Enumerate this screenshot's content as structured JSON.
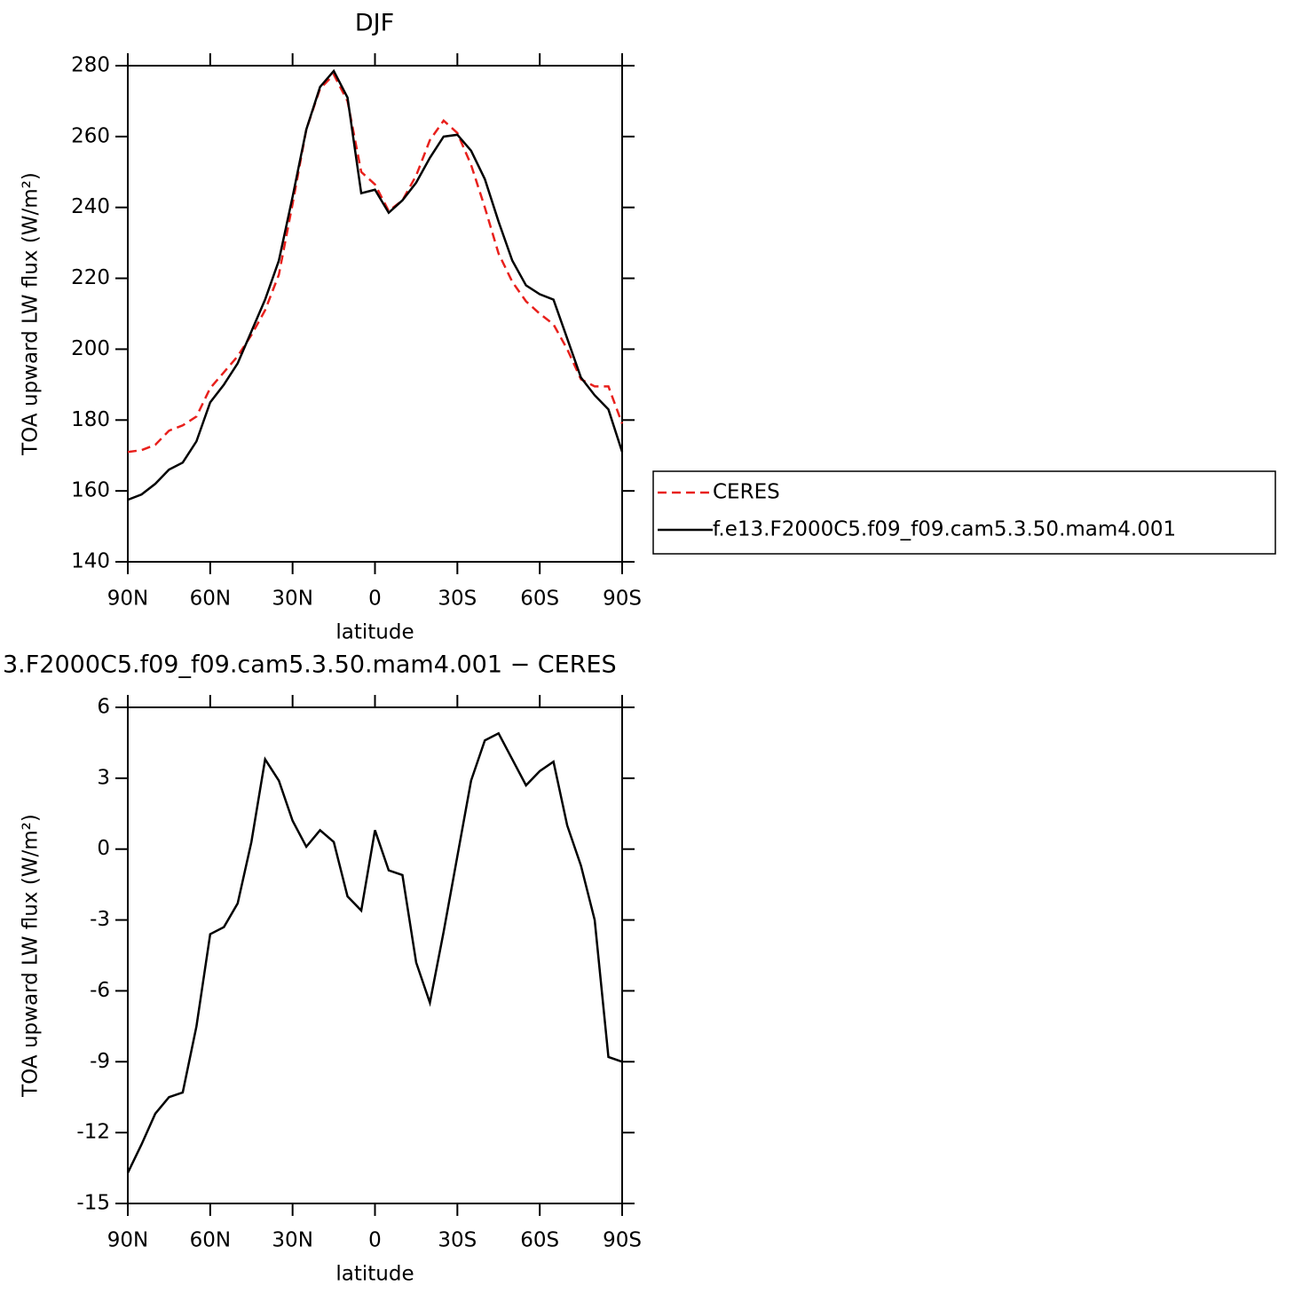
{
  "chart_data": [
    {
      "type": "line",
      "title": "DJF",
      "x_label": "latitude",
      "y_label": "TOA upward LW flux (W/m²)",
      "x": [
        90,
        85,
        80,
        75,
        70,
        65,
        60,
        55,
        50,
        45,
        40,
        35,
        30,
        25,
        20,
        15,
        10,
        5,
        0,
        -5,
        -10,
        -15,
        -20,
        -25,
        -30,
        -35,
        -40,
        -45,
        -50,
        -55,
        -60,
        -65,
        -70,
        -75,
        -80,
        -85,
        -90
      ],
      "xlim": [
        90,
        -90
      ],
      "xticks": [
        {
          "value": 90,
          "label": "90N"
        },
        {
          "value": 60,
          "label": "60N"
        },
        {
          "value": 30,
          "label": "30N"
        },
        0,
        {
          "value": -30,
          "label": "30S"
        },
        {
          "value": -60,
          "label": "60S"
        },
        {
          "value": -90,
          "label": "90S"
        }
      ],
      "ylim": [
        140,
        280
      ],
      "yticks": [
        140,
        160,
        180,
        200,
        220,
        240,
        260,
        280
      ],
      "legend": "right",
      "series": [
        {
          "name": "CERES",
          "color": "#e8201c",
          "line_style": "dashed",
          "values": [
            171,
            171.5,
            173,
            177,
            178.5,
            181,
            189,
            193.5,
            198,
            204,
            211,
            221,
            241,
            262,
            273.5,
            277.5,
            270,
            250,
            246.5,
            239,
            242,
            249,
            259,
            264.5,
            261,
            252,
            240,
            227,
            219,
            213.5,
            210,
            207,
            200,
            191.5,
            189.5,
            189.5,
            179
          ]
        },
        {
          "name": "f.e13.F2000C5.f09_f09.cam5.3.50.mam4.001",
          "color": "#000000",
          "line_style": "solid",
          "values": [
            157.5,
            159,
            162,
            166,
            168,
            174,
            185,
            190,
            196,
            205,
            214,
            225,
            243,
            262,
            274,
            278.5,
            271,
            244,
            245,
            238.5,
            242,
            247,
            254,
            260,
            260.5,
            256,
            248,
            236,
            225,
            218,
            215.5,
            214,
            203,
            192,
            187,
            183,
            171
          ]
        }
      ]
    },
    {
      "type": "line",
      "title": "3.F2000C5.f09_f09.cam5.3.50.mam4.001 − CERES",
      "x_label": "latitude",
      "y_label": "TOA upward LW flux (W/m²)",
      "x": [
        90,
        85,
        80,
        75,
        70,
        65,
        60,
        55,
        50,
        45,
        40,
        35,
        30,
        25,
        20,
        15,
        10,
        5,
        0,
        -5,
        -10,
        -15,
        -20,
        -25,
        -30,
        -35,
        -40,
        -45,
        -50,
        -55,
        -60,
        -65,
        -70,
        -75,
        -80,
        -85,
        -90
      ],
      "xlim": [
        90,
        -90
      ],
      "xticks": [
        {
          "value": 90,
          "label": "90N"
        },
        {
          "value": 60,
          "label": "60N"
        },
        {
          "value": 30,
          "label": "30N"
        },
        0,
        {
          "value": -30,
          "label": "30S"
        },
        {
          "value": -60,
          "label": "60S"
        },
        {
          "value": -90,
          "label": "90S"
        }
      ],
      "ylim": [
        -15,
        6
      ],
      "yticks": [
        -15,
        -12,
        -9,
        -6,
        -3,
        0,
        3,
        6
      ],
      "series": [
        {
          "color": "#000000",
          "line_style": "solid",
          "values": [
            -13.7,
            -12.5,
            -11.2,
            -10.5,
            -10.3,
            -7.5,
            -3.6,
            -3.3,
            -2.3,
            0.3,
            3.8,
            2.9,
            1.2,
            0.1,
            0.8,
            0.3,
            -2,
            -2.6,
            0.8,
            -0.9,
            -1.1,
            -4.8,
            -6.5,
            -3.5,
            -0.3,
            2.9,
            4.6,
            4.9,
            3.8,
            2.7,
            3.3,
            3.7,
            1,
            -0.7,
            -3,
            -8.8,
            -9
          ]
        }
      ]
    }
  ]
}
